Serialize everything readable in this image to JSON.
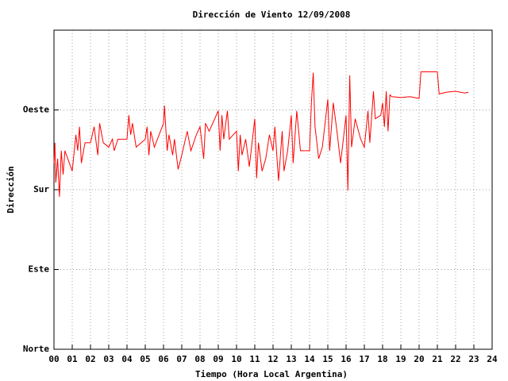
{
  "chart_data": {
    "type": "line",
    "title": "Dirección de Viento 12/09/2008",
    "xlabel": "Tiempo (Hora Local Argentina)",
    "ylabel": "Dirección",
    "xlim": [
      0,
      24
    ],
    "xticks": [
      {
        "value": 0,
        "label": "00"
      },
      {
        "value": 1,
        "label": "01"
      },
      {
        "value": 2,
        "label": "02"
      },
      {
        "value": 3,
        "label": "03"
      },
      {
        "value": 4,
        "label": "04"
      },
      {
        "value": 5,
        "label": "05"
      },
      {
        "value": 6,
        "label": "06"
      },
      {
        "value": 7,
        "label": "07"
      },
      {
        "value": 8,
        "label": "08"
      },
      {
        "value": 9,
        "label": "09"
      },
      {
        "value": 10,
        "label": "10"
      },
      {
        "value": 11,
        "label": "11"
      },
      {
        "value": 12,
        "label": "12"
      },
      {
        "value": 13,
        "label": "13"
      },
      {
        "value": 14,
        "label": "14"
      },
      {
        "value": 15,
        "label": "15"
      },
      {
        "value": 16,
        "label": "16"
      },
      {
        "value": 17,
        "label": "17"
      },
      {
        "value": 18,
        "label": "18"
      },
      {
        "value": 19,
        "label": "19"
      },
      {
        "value": 20,
        "label": "20"
      },
      {
        "value": 21,
        "label": "21"
      },
      {
        "value": 22,
        "label": "22"
      },
      {
        "value": 23,
        "label": "23"
      },
      {
        "value": 24,
        "label": "24"
      }
    ],
    "ylim": [
      0,
      360
    ],
    "yticks": [
      {
        "value": 0,
        "label": "Norte"
      },
      {
        "value": 90,
        "label": "Este"
      },
      {
        "value": 180,
        "label": "Sur"
      },
      {
        "value": 270,
        "label": "Oeste"
      }
    ],
    "grid": true,
    "x": [
      0,
      0.05,
      0.1,
      0.2,
      0.3,
      0.4,
      0.5,
      0.6,
      1.0,
      1.2,
      1.3,
      1.4,
      1.5,
      1.7,
      2.0,
      2.2,
      2.4,
      2.5,
      2.7,
      3.0,
      3.2,
      3.3,
      3.5,
      4.0,
      4.1,
      4.2,
      4.3,
      4.5,
      5.0,
      5.1,
      5.2,
      5.3,
      5.5,
      6.0,
      6.05,
      6.2,
      6.3,
      6.5,
      6.6,
      6.8,
      7.0,
      7.3,
      7.5,
      7.8,
      8.0,
      8.2,
      8.3,
      8.5,
      9.0,
      9.1,
      9.2,
      9.3,
      9.5,
      9.6,
      10.0,
      10.1,
      10.2,
      10.3,
      10.5,
      10.7,
      11.0,
      11.1,
      11.2,
      11.4,
      11.6,
      11.8,
      12.0,
      12.1,
      12.3,
      12.5,
      12.6,
      12.8,
      13.0,
      13.1,
      13.3,
      13.5,
      14.0,
      14.1,
      14.2,
      14.3,
      14.5,
      14.7,
      15.0,
      15.1,
      15.3,
      15.5,
      15.7,
      16.0,
      16.1,
      16.2,
      16.3,
      16.5,
      16.8,
      17.0,
      17.2,
      17.3,
      17.5,
      17.6,
      17.9,
      18.0,
      18.1,
      18.2,
      18.3,
      18.4,
      18.5,
      19.0,
      19.5,
      20.0,
      20.1,
      20.5,
      21.0,
      21.1,
      21.5,
      22.0,
      22.5,
      22.7
    ],
    "series": [
      {
        "name": "Dirección",
        "color": "#ff0000",
        "values": [
          210,
          233,
          188,
          215,
          172,
          224,
          197,
          224,
          201,
          242,
          224,
          251,
          210,
          233,
          233,
          251,
          219,
          255,
          233,
          228,
          237,
          224,
          237,
          237,
          264,
          242,
          255,
          228,
          237,
          251,
          219,
          246,
          228,
          255,
          275,
          224,
          242,
          219,
          237,
          203,
          219,
          246,
          224,
          242,
          251,
          215,
          255,
          246,
          269,
          224,
          264,
          237,
          269,
          237,
          246,
          201,
          242,
          219,
          237,
          206,
          260,
          193,
          233,
          201,
          215,
          242,
          224,
          251,
          190,
          246,
          201,
          224,
          264,
          210,
          269,
          224,
          224,
          278,
          312,
          251,
          215,
          228,
          282,
          224,
          278,
          246,
          210,
          264,
          179,
          309,
          228,
          260,
          237,
          228,
          269,
          233,
          291,
          260,
          264,
          278,
          251,
          291,
          246,
          287,
          285,
          284,
          285,
          283,
          313,
          313,
          313,
          288,
          290,
          291,
          289,
          290
        ]
      }
    ]
  }
}
